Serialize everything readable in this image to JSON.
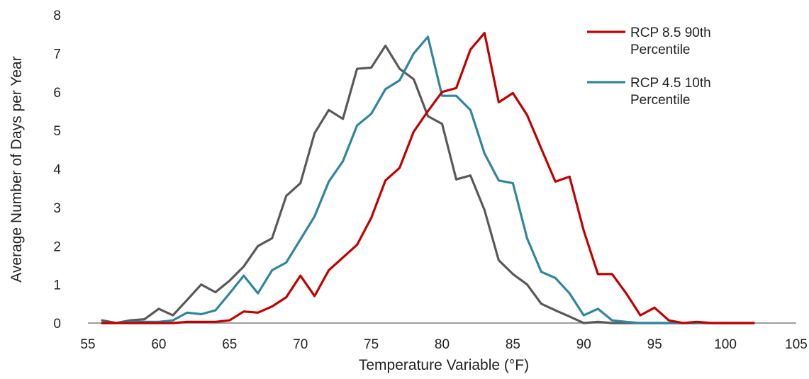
{
  "chart_data": {
    "type": "line",
    "title": "",
    "xlabel": "Temperature Variable (°F)",
    "ylabel": "Average Number of Days per Year",
    "xlim": [
      55,
      105
    ],
    "ylim": [
      0,
      8
    ],
    "x_ticks": [
      "55",
      "60",
      "65",
      "70",
      "75",
      "80",
      "85",
      "90",
      "95",
      "100",
      "105"
    ],
    "y_ticks": [
      "0",
      "1",
      "2",
      "3",
      "4",
      "5",
      "6",
      "7",
      "8"
    ],
    "grid": false,
    "legend_position": "top-right",
    "series": [
      {
        "name": "",
        "color": "#595959",
        "x": [
          56,
          57,
          58,
          59,
          60,
          61,
          62,
          63,
          64,
          65,
          66,
          67,
          68,
          69,
          70,
          71,
          72,
          73,
          74,
          75,
          76,
          77,
          78,
          79,
          80,
          81,
          82,
          83,
          84,
          85,
          86,
          87,
          88,
          89,
          90,
          91,
          92,
          93,
          94,
          95,
          96,
          97,
          98,
          99,
          100,
          101,
          102
        ],
        "values": [
          0.07,
          0.0,
          0.07,
          0.1,
          0.37,
          0.2,
          0.6,
          1.0,
          0.8,
          1.1,
          1.47,
          2.0,
          2.2,
          3.3,
          3.63,
          4.93,
          5.53,
          5.3,
          6.6,
          6.63,
          7.2,
          6.6,
          6.33,
          5.37,
          5.17,
          3.73,
          3.83,
          2.93,
          1.63,
          1.27,
          1.0,
          0.5,
          0.33,
          0.17,
          0.0,
          0.03,
          0.0,
          0.0,
          0.0,
          0.0,
          0.0,
          0.0,
          0.0,
          0.0,
          0.0,
          0.0,
          0.0
        ]
      },
      {
        "name": "RCP 4.5 10th Percentile",
        "legend_lines": [
          "RCP 4.5 10th",
          "Percentile"
        ],
        "color": "#31859C",
        "x": [
          56,
          57,
          58,
          59,
          60,
          61,
          62,
          63,
          64,
          65,
          66,
          67,
          68,
          69,
          70,
          71,
          72,
          73,
          74,
          75,
          76,
          77,
          78,
          79,
          80,
          81,
          82,
          83,
          84,
          85,
          86,
          87,
          88,
          89,
          90,
          91,
          92,
          93,
          94,
          95,
          96,
          97,
          98,
          99,
          100,
          101,
          102
        ],
        "values": [
          0.0,
          0.0,
          0.03,
          0.03,
          0.03,
          0.07,
          0.27,
          0.23,
          0.33,
          0.77,
          1.23,
          0.77,
          1.37,
          1.57,
          2.17,
          2.77,
          3.67,
          4.2,
          5.13,
          5.43,
          6.07,
          6.3,
          7.0,
          7.43,
          5.9,
          5.9,
          5.53,
          4.4,
          3.7,
          3.63,
          2.2,
          1.33,
          1.17,
          0.77,
          0.2,
          0.37,
          0.07,
          0.03,
          0.0,
          0.0,
          0.0,
          0.0,
          0.0,
          0.0,
          0.0,
          0.0,
          0.0
        ]
      },
      {
        "name": "RCP 8.5 90th Percentile",
        "legend_lines": [
          "RCP 8.5 90th",
          "Percentile"
        ],
        "color": "#C00000",
        "x": [
          56,
          57,
          58,
          59,
          60,
          61,
          62,
          63,
          64,
          65,
          66,
          67,
          68,
          69,
          70,
          71,
          72,
          73,
          74,
          75,
          76,
          77,
          78,
          79,
          80,
          81,
          82,
          83,
          84,
          85,
          86,
          87,
          88,
          89,
          90,
          91,
          92,
          93,
          94,
          95,
          96,
          97,
          98,
          99,
          100,
          101,
          102
        ],
        "values": [
          0.0,
          0.0,
          0.0,
          0.0,
          0.0,
          0.0,
          0.03,
          0.03,
          0.03,
          0.07,
          0.3,
          0.27,
          0.43,
          0.67,
          1.23,
          0.7,
          1.37,
          1.7,
          2.03,
          2.73,
          3.7,
          4.03,
          4.97,
          5.5,
          6.0,
          6.1,
          7.1,
          7.53,
          5.73,
          5.97,
          5.4,
          4.53,
          3.67,
          3.8,
          2.4,
          1.27,
          1.27,
          0.77,
          0.2,
          0.4,
          0.07,
          0.0,
          0.03,
          0.0,
          0.0,
          0.0,
          0.0
        ]
      }
    ]
  }
}
